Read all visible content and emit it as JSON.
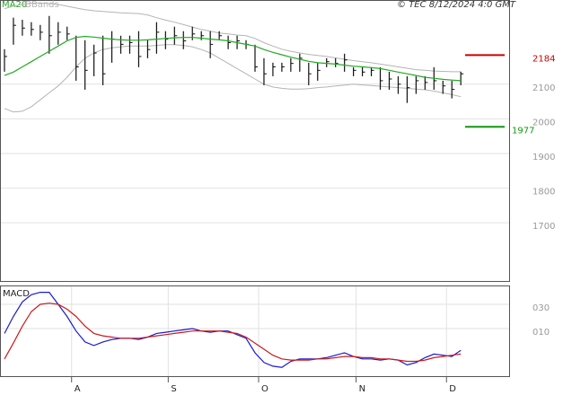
{
  "chart_data": [
    {
      "type": "ohlc",
      "copyright": "© TEC 8/12/2024 4:0 GMT",
      "high": [
        2201,
        2292,
        2286,
        2279,
        2271,
        2297,
        2279,
        2266,
        2240,
        2227,
        2214,
        2240,
        2253,
        2240,
        2240,
        2253,
        2227,
        2279,
        2253,
        2266,
        2253,
        2266,
        2253,
        2253,
        2253,
        2240,
        2240,
        2227,
        2214,
        2175,
        2162,
        2162,
        2175,
        2188,
        2162,
        2162,
        2175,
        2175,
        2188,
        2149,
        2149,
        2149,
        2149,
        2136,
        2123,
        2123,
        2123,
        2123,
        2149,
        2110,
        2110,
        2136
      ],
      "low": [
        2136,
        2214,
        2240,
        2240,
        2227,
        2188,
        2214,
        2227,
        2110,
        2084,
        2123,
        2097,
        2162,
        2188,
        2188,
        2149,
        2175,
        2188,
        2201,
        2214,
        2201,
        2227,
        2227,
        2175,
        2227,
        2201,
        2201,
        2201,
        2136,
        2097,
        2123,
        2136,
        2136,
        2136,
        2097,
        2110,
        2149,
        2149,
        2136,
        2123,
        2123,
        2123,
        2084,
        2084,
        2072,
        2046,
        2072,
        2084,
        2084,
        2072,
        2059,
        2097
      ],
      "close": [
        2180,
        2270,
        2262,
        2258,
        2250,
        2240,
        2250,
        2245,
        2150,
        2140,
        2190,
        2130,
        2230,
        2215,
        2220,
        2180,
        2200,
        2250,
        2230,
        2240,
        2225,
        2245,
        2240,
        2215,
        2240,
        2220,
        2225,
        2215,
        2150,
        2130,
        2150,
        2150,
        2160,
        2175,
        2130,
        2140,
        2165,
        2160,
        2170,
        2140,
        2135,
        2140,
        2110,
        2115,
        2100,
        2090,
        2110,
        2105,
        2110,
        2095,
        2085,
        2130
      ],
      "overlays": [
        {
          "name": "MA20",
          "color": "#22aa22",
          "values": [
            2125,
            2135,
            2150,
            2165,
            2180,
            2195,
            2210,
            2225,
            2235,
            2238,
            2236,
            2233,
            2230,
            2228,
            2227,
            2227,
            2228,
            2230,
            2232,
            2234,
            2235,
            2235,
            2233,
            2230,
            2228,
            2225,
            2220,
            2215,
            2210,
            2200,
            2192,
            2185,
            2178,
            2172,
            2166,
            2162,
            2160,
            2158,
            2155,
            2152,
            2150,
            2148,
            2145,
            2140,
            2135,
            2130,
            2125,
            2120,
            2117,
            2114,
            2112,
            2110
          ]
        },
        {
          "name": "BBands",
          "color": "#b4b4b4",
          "upper": [
            2318,
            2325,
            2330,
            2334,
            2334,
            2333,
            2330,
            2325,
            2320,
            2315,
            2312,
            2310,
            2308,
            2306,
            2305,
            2304,
            2300,
            2292,
            2285,
            2279,
            2272,
            2265,
            2258,
            2253,
            2248,
            2245,
            2242,
            2240,
            2232,
            2220,
            2210,
            2201,
            2195,
            2190,
            2186,
            2183,
            2180,
            2176,
            2172,
            2168,
            2165,
            2162,
            2158,
            2154,
            2150,
            2146,
            2142,
            2140,
            2138,
            2137,
            2136,
            2136
          ],
          "lower": [
            2030,
            2020,
            2022,
            2035,
            2055,
            2075,
            2095,
            2120,
            2150,
            2175,
            2190,
            2200,
            2205,
            2208,
            2210,
            2210,
            2210,
            2212,
            2214,
            2214,
            2212,
            2208,
            2200,
            2190,
            2175,
            2160,
            2145,
            2130,
            2115,
            2100,
            2092,
            2088,
            2086,
            2086,
            2087,
            2090,
            2092,
            2095,
            2097,
            2100,
            2098,
            2096,
            2094,
            2092,
            2090,
            2088,
            2086,
            2084,
            2080,
            2075,
            2070,
            2064
          ]
        }
      ],
      "levels": [
        {
          "value": 2184,
          "color": "#cc0000"
        },
        {
          "value": 1977,
          "color": "#119911"
        }
      ],
      "xlim": [
        -0.5,
        56.5
      ],
      "ylim": [
        1532,
        2343
      ],
      "yticks": [
        1700,
        1800,
        1900,
        2000,
        2100
      ],
      "grid": true
    },
    {
      "type": "line",
      "title": "MACD",
      "series": [
        {
          "color": "#1a1acc",
          "values": [
            6,
            20,
            32,
            38,
            40,
            40,
            30,
            20,
            8,
            -1,
            -4,
            -1,
            1,
            2,
            2,
            1,
            3,
            6,
            7,
            8,
            9,
            10,
            8,
            7,
            8,
            8,
            5,
            2,
            -10,
            -18,
            -21,
            -22,
            -17,
            -15,
            -15,
            -15,
            -14,
            -12,
            -10,
            -13,
            -15,
            -15,
            -16,
            -15,
            -16,
            -20,
            -18,
            -14,
            -11,
            -12,
            -13,
            -8
          ]
        },
        {
          "color": "#cc1a1a",
          "values": [
            -15,
            -2,
            12,
            24,
            30,
            31,
            30,
            26,
            20,
            12,
            6,
            4,
            3,
            2,
            2,
            2,
            3,
            4,
            5,
            6,
            7,
            8,
            8,
            8,
            8,
            7,
            6,
            3,
            -2,
            -7,
            -12,
            -15,
            -16,
            -16,
            -16,
            -15,
            -15,
            -14,
            -13,
            -13,
            -14,
            -14,
            -15,
            -15,
            -16,
            -17,
            -17,
            -16,
            -14,
            -13,
            -12,
            -11
          ]
        }
      ],
      "xlim": [
        -0.5,
        56.5
      ],
      "xticks": [
        {
          "value": 7.5,
          "label": "A"
        },
        {
          "value": 18.3,
          "label": "S"
        },
        {
          "value": 28.4,
          "label": "O"
        },
        {
          "value": 39.3,
          "label": "N"
        },
        {
          "value": 49.4,
          "label": "D"
        }
      ],
      "ylim": [
        -30,
        45.6
      ],
      "yticks": [
        {
          "value": 30,
          "label": "030"
        },
        {
          "value": 10,
          "label": "010"
        }
      ],
      "grid": true
    }
  ]
}
